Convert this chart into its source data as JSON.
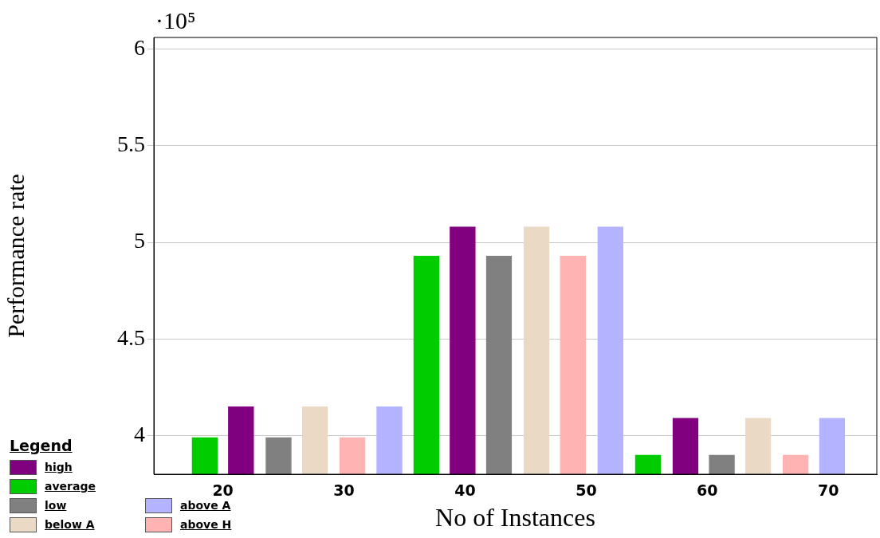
{
  "chart_data": {
    "type": "bar",
    "xlabel": "No of Instances",
    "ylabel": "Performance rate",
    "legend_title": "Legend",
    "annotations": [
      "·10⁵"
    ],
    "xlim": [
      14.3,
      74
    ],
    "xticks": [
      20,
      30,
      40,
      50,
      60,
      70
    ],
    "ylim": [
      3.8,
      6.06
    ],
    "yticks": [
      4,
      4.5,
      5,
      5.5,
      6
    ],
    "grid": "y",
    "legend": "bottom left",
    "series": [
      {
        "name": "high",
        "color": "#800080",
        "x": [
          21.5,
          39.8,
          58.2
        ],
        "values": [
          4.15,
          5.08,
          4.09
        ]
      },
      {
        "name": "average",
        "color": "#00cc00",
        "x": [
          18.5,
          36.8,
          55.1
        ],
        "values": [
          3.99,
          4.93,
          3.9
        ]
      },
      {
        "name": "low",
        "color": "#808080",
        "x": [
          24.6,
          42.8,
          61.2
        ],
        "values": [
          3.99,
          4.93,
          3.9
        ]
      },
      {
        "name": "below A",
        "color": "#ead9c4",
        "x": [
          27.6,
          45.9,
          64.2
        ],
        "values": [
          4.15,
          5.08,
          4.09
        ]
      },
      {
        "name": "above A",
        "color": "#b3b3ff",
        "x": [
          33.75,
          52.0,
          70.3
        ],
        "values": [
          4.15,
          5.08,
          4.09
        ]
      },
      {
        "name": "above H",
        "color": "#ffb3b3",
        "x": [
          30.7,
          48.9,
          67.3
        ],
        "values": [
          3.99,
          4.93,
          3.9
        ]
      }
    ]
  }
}
